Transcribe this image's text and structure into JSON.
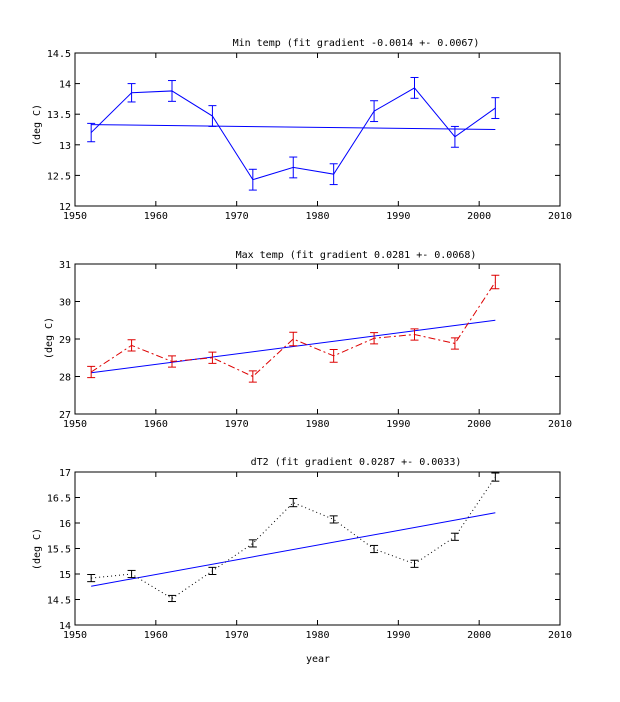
{
  "chart_data": [
    {
      "type": "line",
      "title": "Min temp (fit gradient -0.0014 +- 0.0067)",
      "xlabel": "",
      "ylabel": "(deg C)",
      "xlim": [
        1950,
        2010
      ],
      "ylim": [
        12,
        14.5
      ],
      "xticks": [
        "1950",
        "1960",
        "1970",
        "1980",
        "1990",
        "2000",
        "2010"
      ],
      "yticks": [
        "12",
        "12.5",
        "13",
        "13.5",
        "14",
        "14.5"
      ],
      "grid": false,
      "series": [
        {
          "color": "#0000ff",
          "style": "solid",
          "x": [
            1952,
            1957,
            1962,
            1967,
            1972,
            1977,
            1982,
            1987,
            1992,
            1997,
            2002
          ],
          "y": [
            13.2,
            13.85,
            13.88,
            13.47,
            12.43,
            12.63,
            12.52,
            13.55,
            13.93,
            13.13,
            13.6
          ],
          "yerr": [
            0.15,
            0.15,
            0.17,
            0.17,
            0.17,
            0.17,
            0.17,
            0.17,
            0.17,
            0.17,
            0.17
          ]
        }
      ],
      "fit": {
        "color": "#0000ff",
        "x": [
          1952,
          2002
        ],
        "y": [
          13.33,
          13.25
        ]
      }
    },
    {
      "type": "line",
      "title": "Max temp (fit gradient 0.0281 +- 0.0068)",
      "xlabel": "",
      "ylabel": "(deg C)",
      "xlim": [
        1950,
        2010
      ],
      "ylim": [
        27,
        31
      ],
      "xticks": [
        "1950",
        "1960",
        "1970",
        "1980",
        "1990",
        "2000",
        "2010"
      ],
      "yticks": [
        "27",
        "28",
        "29",
        "30",
        "31"
      ],
      "grid": false,
      "series": [
        {
          "color": "#dd0000",
          "style": "dashdot",
          "x": [
            1952,
            1957,
            1962,
            1967,
            1972,
            1977,
            1982,
            1987,
            1992,
            1997,
            2002
          ],
          "y": [
            28.12,
            28.83,
            28.4,
            28.5,
            28.0,
            29.0,
            28.55,
            29.02,
            29.12,
            28.88,
            30.52
          ],
          "yerr": [
            0.15,
            0.15,
            0.15,
            0.15,
            0.15,
            0.18,
            0.17,
            0.15,
            0.15,
            0.15,
            0.18
          ]
        }
      ],
      "fit": {
        "color": "#0000ff",
        "x": [
          1952,
          2002
        ],
        "y": [
          28.1,
          29.5
        ]
      }
    },
    {
      "type": "line",
      "title": "dT2 (fit gradient 0.0287 +- 0.0033)",
      "xlabel": "year",
      "ylabel": "(deg C)",
      "xlim": [
        1950,
        2010
      ],
      "ylim": [
        14,
        17
      ],
      "xticks": [
        "1950",
        "1960",
        "1970",
        "1980",
        "1990",
        "2000",
        "2010"
      ],
      "yticks": [
        "14",
        "14.5",
        "15",
        "15.5",
        "16",
        "16.5",
        "17"
      ],
      "grid": false,
      "series": [
        {
          "color": "#000000",
          "style": "dotted",
          "x": [
            1952,
            1957,
            1962,
            1967,
            1972,
            1977,
            1982,
            1987,
            1992,
            1997,
            2002
          ],
          "y": [
            14.92,
            15.0,
            14.52,
            15.06,
            15.6,
            16.4,
            16.07,
            15.49,
            15.2,
            15.73,
            16.9
          ],
          "yerr": [
            0.07,
            0.07,
            0.06,
            0.07,
            0.07,
            0.08,
            0.07,
            0.07,
            0.07,
            0.07,
            0.08
          ]
        }
      ],
      "fit": {
        "color": "#0000ff",
        "x": [
          1952,
          2002
        ],
        "y": [
          14.76,
          16.2
        ]
      }
    }
  ]
}
